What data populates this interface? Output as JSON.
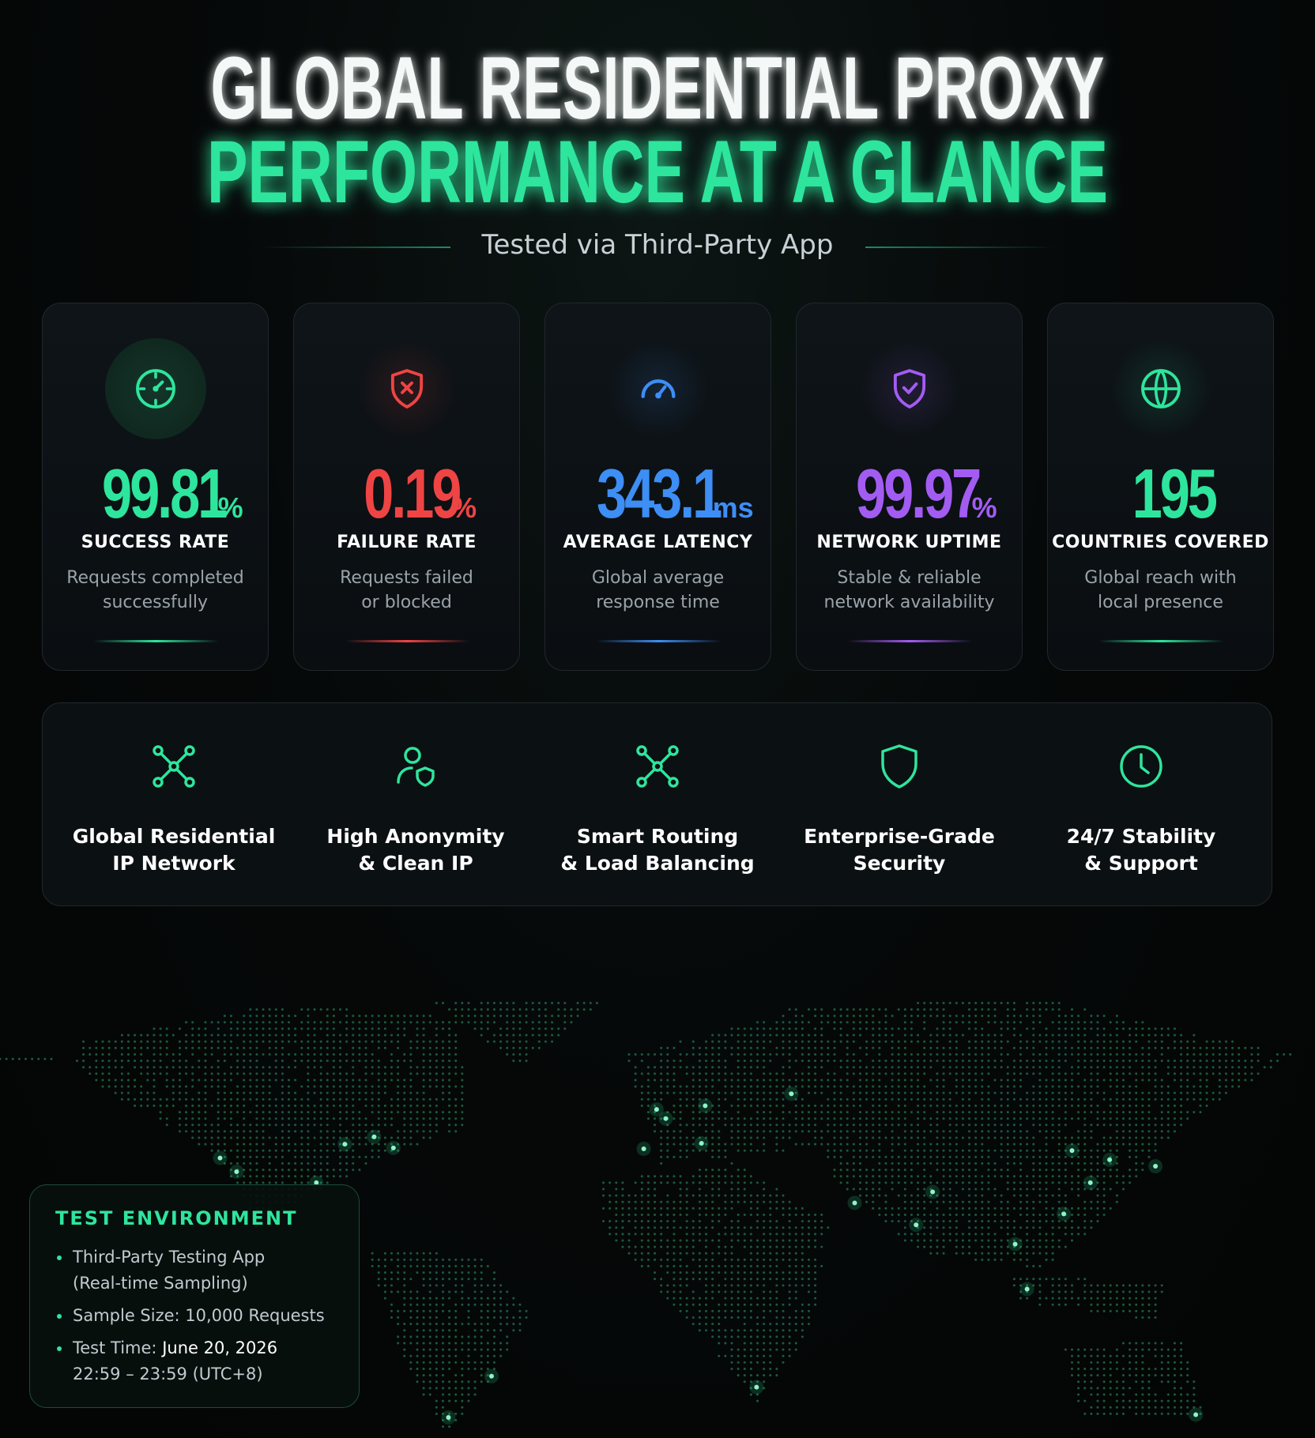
{
  "header": {
    "title_line1": "GLOBAL RESIDENTIAL PROXY",
    "title_line2": "PERFORMANCE AT A GLANCE",
    "subtitle": "Tested via Third-Party App"
  },
  "stats": [
    {
      "value": "99.81",
      "unit": "%",
      "label": "SUCCESS RATE",
      "description": [
        "Requests completed",
        "successfully"
      ],
      "color": "#2ee59d"
    },
    {
      "value": "0.19",
      "unit": "%",
      "label": "FAILURE RATE",
      "description": [
        "Requests failed",
        "or blocked"
      ],
      "color": "#ef4444"
    },
    {
      "value": "343.1",
      "unit": "ms",
      "label": "AVERAGE LATENCY",
      "description": [
        "Global average",
        "response time"
      ],
      "color": "#3d8ef5"
    },
    {
      "value": "99.97",
      "unit": "%",
      "label": "NETWORK UPTIME",
      "description": [
        "Stable & reliable",
        "network availability"
      ],
      "color": "#a35cf2"
    },
    {
      "value": "195",
      "label": "COUNTRIES COVERED",
      "description": [
        "Global reach with",
        "local presence"
      ],
      "color": "#2ee59d"
    }
  ],
  "features": [
    {
      "title": [
        "Global Residential",
        "IP Network"
      ]
    },
    {
      "title": [
        "High Anonymity",
        "& Clean IP"
      ]
    },
    {
      "title": [
        "Smart Routing",
        "& Load Balancing"
      ]
    },
    {
      "title": [
        "Enterprise-Grade",
        "Security"
      ]
    },
    {
      "title": [
        "24/7 Stability",
        "& Support"
      ]
    }
  ],
  "test_environment": {
    "title": "TEST ENVIRONMENT",
    "items": [
      {
        "lines": [
          "Third-Party Testing App",
          "(Real-time Sampling)"
        ]
      },
      {
        "lines": [
          "Sample Size: 10,000 Requests"
        ]
      },
      {
        "label": "Test Time:",
        "lines": [
          "June 20, 2026",
          "22:59 – 23:59 (UTC+8)"
        ]
      }
    ]
  }
}
